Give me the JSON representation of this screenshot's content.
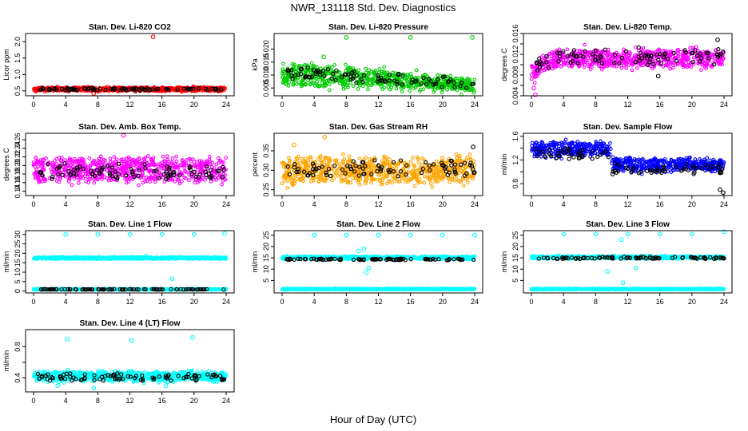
{
  "figure": {
    "title": "NWR_131118  Std. Dev. Diagnostics",
    "xlabel": "Hour of Day (UTC)"
  },
  "chart_data": [
    {
      "type": "scatter",
      "title": "Stan. Dev. Li-820 CO2",
      "ylabel": "Licor ppm",
      "xlim": [
        0,
        24
      ],
      "xticks": [
        0,
        4,
        8,
        12,
        16,
        20,
        24
      ],
      "ylim": [
        0.35,
        2.25
      ],
      "yticks": [
        0.5,
        1.0,
        1.5,
        2.0
      ],
      "ytick_labels": [
        "0.5",
        "1.0",
        "1.5",
        "2.0"
      ],
      "series": [
        {
          "color": "#ff0000",
          "cloud": {
            "center": 0.55,
            "spread": 0.05,
            "spread_end": 0.05,
            "noise": 0.04
          },
          "outliers": [
            [
              14.9,
              2.15
            ],
            [
              7.5,
              0.42
            ]
          ]
        },
        {
          "color": "#000000",
          "hourly": {
            "center": 0.55,
            "spread": 0.03,
            "spread_end": 0.03,
            "noise": 0.03
          }
        }
      ]
    },
    {
      "type": "scatter",
      "title": "Stan. Dev. Li-820 Pressure",
      "ylabel": "kPa",
      "xlim": [
        0,
        24
      ],
      "xticks": [
        0,
        4,
        8,
        12,
        16,
        20,
        24
      ],
      "ylim": [
        0.002,
        0.026
      ],
      "yticks": [
        0.005,
        0.01,
        0.015,
        0.02
      ],
      "ytick_labels": [
        "0.005",
        "0.010",
        "0.015",
        "0.020"
      ],
      "series": [
        {
          "color": "#00cc00",
          "cloud": {
            "center": 0.0105,
            "center_end": 0.006,
            "spread": 0.0035,
            "spread_end": 0.002,
            "noise": 0.0025
          },
          "outliers": [
            [
              8,
              0.0245
            ],
            [
              16,
              0.0245
            ],
            [
              23.7,
              0.0245
            ],
            [
              5.2,
              0.017
            ]
          ]
        },
        {
          "color": "#000000",
          "hourly": {
            "center": 0.0105,
            "center_end": 0.0065,
            "spread": 0.002,
            "spread_end": 0.0012,
            "noise": 0.002
          }
        }
      ]
    },
    {
      "type": "scatter",
      "title": "Stan. Dev. Li-820 Temp.",
      "ylabel": "degrees C",
      "xlim": [
        0,
        24
      ],
      "xticks": [
        0,
        4,
        8,
        12,
        16,
        20,
        24
      ],
      "ylim": [
        0.004,
        0.016
      ],
      "yticks": [
        0.004,
        0.006,
        0.008,
        0.01,
        0.012,
        0.014,
        0.016
      ],
      "ytick_labels": [
        "0.004",
        "",
        "0.008",
        "",
        "0.012",
        "",
        "0.016"
      ],
      "series": [
        {
          "color": "#ff00ff",
          "cloud": {
            "center": 0.0112,
            "center_end": 0.0112,
            "spread": 0.0014,
            "spread_end": 0.0014,
            "noise": 0.0012,
            "rise_from": 0.0085,
            "rise_hours": 3
          },
          "outliers": [
            [
              0.5,
              0.0042
            ],
            [
              0.3,
              0.0055
            ]
          ]
        },
        {
          "color": "#000000",
          "hourly": {
            "center": 0.0115,
            "spread": 0.0012,
            "spread_end": 0.0012,
            "noise": 0.0012,
            "rise_from": 0.0095,
            "rise_hours": 3
          },
          "outliers": [
            [
              15.8,
              0.0078
            ],
            [
              23.2,
              0.0148
            ]
          ]
        }
      ]
    },
    {
      "type": "scatter",
      "title": "Stan. Dev. Amb. Box Temp.",
      "ylabel": "degrees C",
      "xlim": [
        0,
        24
      ],
      "xticks": [
        0,
        4,
        8,
        12,
        16,
        20,
        24
      ],
      "ylim": [
        0.13,
        0.275
      ],
      "yticks": [
        0.14,
        0.16,
        0.18,
        0.2,
        0.22,
        0.24,
        0.26
      ],
      "ytick_labels": [
        "0.14",
        "0.16",
        "0.18",
        "0.20",
        "0.22",
        "0.24",
        "0.26"
      ],
      "series": [
        {
          "color": "#ff00ff",
          "cloud": {
            "center": 0.19,
            "spread": 0.025,
            "spread_end": 0.025,
            "noise": 0.015
          },
          "outliers": [
            [
              11.2,
              0.27
            ]
          ]
        },
        {
          "color": "#000000",
          "hourly": {
            "center": 0.185,
            "spread": 0.015,
            "spread_end": 0.015,
            "noise": 0.01
          }
        }
      ]
    },
    {
      "type": "scatter",
      "title": "Stan. Dev. Gas Stream RH",
      "ylabel": "percent",
      "xlim": [
        0,
        24
      ],
      "xticks": [
        0,
        4,
        8,
        12,
        16,
        20,
        24
      ],
      "ylim": [
        0.235,
        0.395
      ],
      "yticks": [
        0.25,
        0.3,
        0.35
      ],
      "ytick_labels": [
        "0.25",
        "0.30",
        "0.35"
      ],
      "series": [
        {
          "color": "#ffa500",
          "cloud": {
            "center": 0.3,
            "spread": 0.03,
            "spread_end": 0.03,
            "noise": 0.015
          },
          "outliers": [
            [
              5.3,
              0.385
            ],
            [
              1.5,
              0.365
            ]
          ]
        },
        {
          "color": "#000000",
          "hourly": {
            "center": 0.305,
            "spread": 0.018,
            "spread_end": 0.018,
            "noise": 0.01
          },
          "outliers": [
            [
              23.8,
              0.36
            ]
          ]
        }
      ]
    },
    {
      "type": "scatter",
      "title": "Stan. Dev. Sample Flow",
      "ylabel": "ml/min",
      "xlim": [
        0,
        24
      ],
      "xticks": [
        0,
        4,
        8,
        12,
        16,
        20,
        24
      ],
      "ylim": [
        0.6,
        1.65
      ],
      "yticks": [
        0.8,
        1.0,
        1.2,
        1.4,
        1.6
      ],
      "ytick_labels": [
        "0.8",
        "",
        "1.2",
        "",
        "1.6"
      ],
      "series": [
        {
          "color": "#0000ff",
          "cloud": {
            "center": 1.38,
            "center_end": 1.12,
            "spread": 0.12,
            "spread_end": 0.08,
            "noise": 0.06,
            "step_at": 10,
            "step_to": 1.12
          }
        },
        {
          "color": "#000000",
          "hourly": {
            "center": 1.3,
            "center_end": 1.05,
            "spread": 0.08,
            "spread_end": 0.08,
            "noise": 0.05,
            "step_at": 10,
            "step_to": 1.05
          },
          "outliers": [
            [
              23.5,
              0.7
            ],
            [
              23.9,
              0.65
            ]
          ]
        }
      ]
    },
    {
      "type": "scatter",
      "title": "Stan. Dev. Line 1 Flow",
      "ylabel": "ml/min",
      "xlim": [
        0,
        24
      ],
      "xticks": [
        0,
        4,
        8,
        12,
        16,
        20,
        24
      ],
      "ylim": [
        -1,
        32
      ],
      "yticks": [
        0,
        5,
        10,
        15,
        20,
        25,
        30
      ],
      "ytick_labels": [
        "0",
        "5",
        "10",
        "15",
        "20",
        "25",
        "30"
      ],
      "series": [
        {
          "color": "#00ffff",
          "cloud": {
            "center": 17.5,
            "spread": 0.4,
            "spread_end": 0.4,
            "noise": 0.4
          },
          "outliers": [
            [
              4,
              30
            ],
            [
              8,
              30
            ],
            [
              12,
              30
            ],
            [
              16,
              30
            ],
            [
              20,
              30
            ],
            [
              23.8,
              30.5
            ],
            [
              17.3,
              6.5
            ],
            [
              14,
              18.5
            ]
          ]
        },
        {
          "color": "#00ffff",
          "cloud": {
            "center": 0.9,
            "spread": 0.2,
            "spread_end": 0.2,
            "noise": 0.1
          }
        },
        {
          "color": "#000000",
          "hourly": {
            "center": 0.9,
            "spread": 0.1,
            "spread_end": 0.1,
            "noise": 0.05
          }
        }
      ]
    },
    {
      "type": "scatter",
      "title": "Stan. Dev. Line 2 Flow",
      "ylabel": "ml/min",
      "xlim": [
        0,
        24
      ],
      "xticks": [
        0,
        4,
        8,
        12,
        16,
        20,
        24
      ],
      "ylim": [
        -0.5,
        27
      ],
      "yticks": [
        5,
        10,
        15,
        20,
        25
      ],
      "ytick_labels": [
        "5",
        "10",
        "15",
        "20",
        "25"
      ],
      "series": [
        {
          "color": "#00ffff",
          "cloud": {
            "center": 15,
            "spread": 0.5,
            "spread_end": 0.5,
            "noise": 0.4
          },
          "outliers": [
            [
              4,
              25
            ],
            [
              8,
              25
            ],
            [
              12,
              25
            ],
            [
              16,
              25
            ],
            [
              20,
              25
            ],
            [
              24,
              25
            ],
            [
              10.5,
              8.5
            ],
            [
              10.8,
              10.5
            ],
            [
              9.5,
              18
            ],
            [
              10.2,
              19
            ]
          ]
        },
        {
          "color": "#00ffff",
          "cloud": {
            "center": 1.2,
            "spread": 0.2,
            "spread_end": 0.2,
            "noise": 0.1
          }
        },
        {
          "color": "#000000",
          "hourly": {
            "center": 14.3,
            "spread": 0.3,
            "spread_end": 0.3,
            "noise": 0.2
          }
        }
      ]
    },
    {
      "type": "scatter",
      "title": "Stan. Dev. Line 3 Flow",
      "ylabel": "ml/min",
      "xlim": [
        0,
        24
      ],
      "xticks": [
        0,
        4,
        8,
        12,
        16,
        20,
        24
      ],
      "ylim": [
        -0.5,
        27
      ],
      "yticks": [
        5,
        10,
        15,
        20,
        25
      ],
      "ytick_labels": [
        "5",
        "10",
        "15",
        "20",
        "25"
      ],
      "series": [
        {
          "color": "#00ffff",
          "cloud": {
            "center": 15.2,
            "spread": 0.5,
            "spread_end": 0.5,
            "noise": 0.4
          },
          "outliers": [
            [
              4,
              25.5
            ],
            [
              8,
              25.5
            ],
            [
              12,
              25.5
            ],
            [
              16,
              25.5
            ],
            [
              20,
              25.5
            ],
            [
              24,
              26.5
            ],
            [
              11.2,
              23
            ],
            [
              13,
              10.5
            ],
            [
              9.5,
              9
            ],
            [
              11.4,
              4
            ]
          ]
        },
        {
          "color": "#00ffff",
          "cloud": {
            "center": 1.2,
            "spread": 0.2,
            "spread_end": 0.2,
            "noise": 0.1
          }
        },
        {
          "color": "#000000",
          "hourly": {
            "center": 15.0,
            "spread": 0.4,
            "spread_end": 0.4,
            "noise": 0.3
          }
        }
      ]
    },
    {
      "type": "scatter",
      "title": "Stan. Dev. Line 4 (LT) Flow",
      "ylabel": "ml/min",
      "xlim": [
        0,
        24
      ],
      "xticks": [
        0,
        4,
        8,
        12,
        16,
        20,
        24
      ],
      "ylim": [
        0.22,
        1.02
      ],
      "yticks": [
        0.4,
        0.6,
        0.8
      ],
      "ytick_labels": [
        "0.4",
        "",
        "0.8"
      ],
      "series": [
        {
          "color": "#00ffff",
          "cloud": {
            "center": 0.42,
            "spread": 0.05,
            "spread_end": 0.05,
            "noise": 0.04
          },
          "outliers": [
            [
              4.2,
              0.9
            ],
            [
              12.2,
              0.88
            ],
            [
              19.8,
              0.92
            ],
            [
              3,
              0.3
            ],
            [
              7.5,
              0.27
            ],
            [
              16.5,
              0.3
            ]
          ]
        },
        {
          "color": "#000000",
          "hourly": {
            "center": 0.41,
            "spread": 0.04,
            "spread_end": 0.04,
            "noise": 0.03
          }
        }
      ]
    }
  ]
}
